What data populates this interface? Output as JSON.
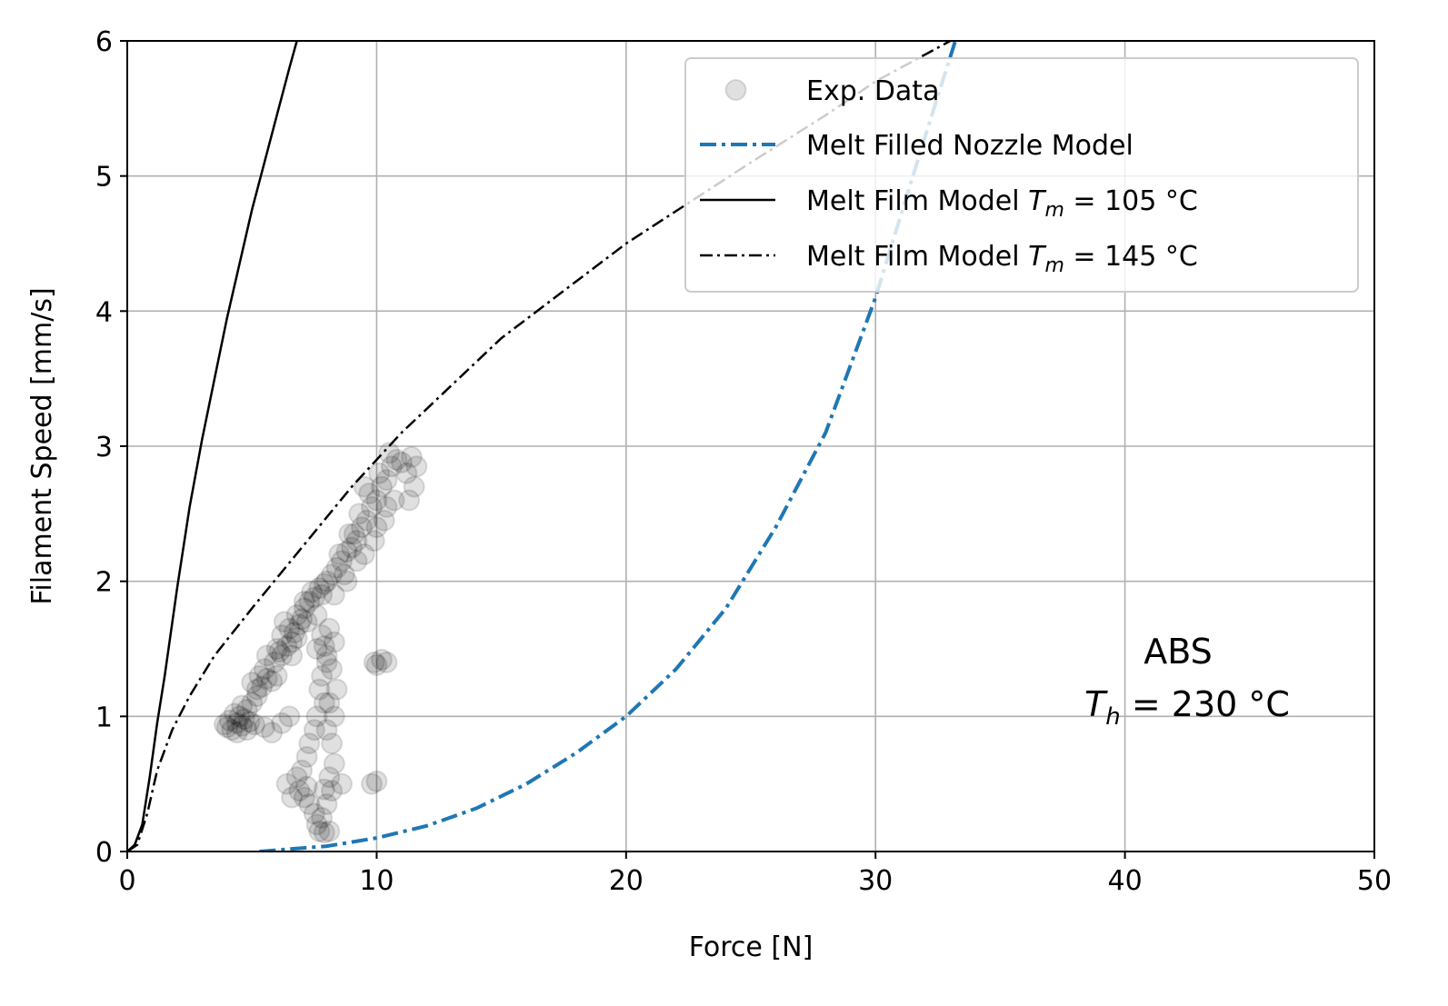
{
  "chart_data": {
    "type": "scatter",
    "title": "",
    "xlabel": "Force [N]",
    "ylabel": "Filament Speed [mm/s]",
    "xlim": [
      0,
      50
    ],
    "ylim": [
      0,
      6
    ],
    "xticks": [
      "0",
      "10",
      "20",
      "30",
      "40",
      "50"
    ],
    "yticks": [
      "0",
      "1",
      "2",
      "3",
      "4",
      "5",
      "6"
    ],
    "grid": true,
    "legend_position": "top-right",
    "annotation": {
      "line1": "ABS",
      "line2_var": "T",
      "line2_sub": "h",
      "line2_rest": " = 230 °C"
    },
    "series": [
      {
        "name": "Exp. Data",
        "kind": "scatter",
        "color": "#000000",
        "alpha": 0.12,
        "points": [
          [
            4.0,
            0.92
          ],
          [
            4.2,
            0.9
          ],
          [
            4.4,
            0.95
          ],
          [
            4.6,
            0.93
          ],
          [
            4.8,
            0.9
          ],
          [
            4.5,
            1.0
          ],
          [
            4.3,
            1.02
          ],
          [
            4.7,
            0.98
          ],
          [
            4.9,
            0.96
          ],
          [
            5.1,
            0.94
          ],
          [
            4.8,
            1.05
          ],
          [
            4.6,
            1.08
          ],
          [
            5.0,
            1.1
          ],
          [
            5.2,
            1.2
          ],
          [
            5.0,
            1.25
          ],
          [
            5.4,
            1.22
          ],
          [
            5.6,
            1.28
          ],
          [
            5.3,
            1.3
          ],
          [
            5.8,
            1.26
          ],
          [
            6.0,
            1.3
          ],
          [
            6.2,
            1.45
          ],
          [
            6.0,
            1.5
          ],
          [
            6.4,
            1.52
          ],
          [
            6.6,
            1.55
          ],
          [
            6.2,
            1.6
          ],
          [
            6.8,
            1.58
          ],
          [
            6.5,
            1.65
          ],
          [
            6.3,
            1.7
          ],
          [
            6.9,
            1.68
          ],
          [
            7.0,
            1.72
          ],
          [
            7.1,
            1.8
          ],
          [
            7.3,
            1.85
          ],
          [
            7.5,
            1.88
          ],
          [
            7.4,
            1.92
          ],
          [
            7.7,
            1.95
          ],
          [
            7.9,
            1.98
          ],
          [
            8.0,
            2.0
          ],
          [
            7.8,
            1.9
          ],
          [
            8.2,
            2.05
          ],
          [
            8.4,
            2.1
          ],
          [
            8.6,
            2.15
          ],
          [
            8.5,
            2.2
          ],
          [
            8.8,
            2.22
          ],
          [
            9.0,
            2.25
          ],
          [
            9.2,
            2.3
          ],
          [
            9.1,
            2.35
          ],
          [
            9.4,
            2.4
          ],
          [
            9.6,
            2.45
          ],
          [
            9.3,
            2.5
          ],
          [
            9.8,
            2.55
          ],
          [
            10.0,
            2.6
          ],
          [
            9.7,
            2.65
          ],
          [
            10.2,
            2.7
          ],
          [
            10.4,
            2.75
          ],
          [
            10.1,
            2.8
          ],
          [
            10.6,
            2.85
          ],
          [
            10.8,
            2.9
          ],
          [
            10.5,
            2.95
          ],
          [
            11.0,
            2.88
          ],
          [
            9.5,
            2.7
          ],
          [
            8.9,
            2.35
          ],
          [
            9.9,
            2.3
          ],
          [
            10.3,
            2.45
          ],
          [
            10.7,
            2.6
          ],
          [
            11.2,
            2.8
          ],
          [
            11.4,
            2.92
          ],
          [
            9.2,
            2.15
          ],
          [
            8.7,
            2.05
          ],
          [
            10.0,
            2.4
          ],
          [
            10.4,
            2.55
          ],
          [
            7.6,
            1.75
          ],
          [
            7.2,
            1.7
          ],
          [
            6.7,
            1.62
          ],
          [
            5.9,
            1.4
          ],
          [
            5.5,
            1.35
          ],
          [
            4.4,
            0.88
          ],
          [
            3.9,
            0.94
          ],
          [
            4.1,
            0.97
          ],
          [
            6.1,
            1.48
          ],
          [
            6.6,
            1.45
          ],
          [
            7.8,
            1.6
          ],
          [
            7.9,
            1.52
          ],
          [
            7.6,
            1.5
          ],
          [
            8.0,
            1.4
          ],
          [
            7.8,
            1.3
          ],
          [
            7.7,
            1.2
          ],
          [
            7.9,
            1.1
          ],
          [
            7.6,
            1.0
          ],
          [
            7.5,
            0.9
          ],
          [
            7.3,
            0.8
          ],
          [
            7.2,
            0.7
          ],
          [
            7.0,
            0.6
          ],
          [
            6.8,
            0.55
          ],
          [
            6.9,
            0.45
          ],
          [
            7.1,
            0.4
          ],
          [
            7.3,
            0.35
          ],
          [
            7.5,
            0.28
          ],
          [
            7.6,
            0.2
          ],
          [
            7.7,
            0.15
          ],
          [
            7.9,
            0.14
          ],
          [
            8.1,
            0.15
          ],
          [
            7.8,
            0.25
          ],
          [
            8.0,
            0.35
          ],
          [
            8.2,
            0.45
          ],
          [
            8.1,
            0.55
          ],
          [
            8.3,
            0.65
          ],
          [
            8.2,
            0.8
          ],
          [
            8.0,
            0.9
          ],
          [
            8.3,
            1.0
          ],
          [
            8.1,
            1.1
          ],
          [
            8.4,
            1.2
          ],
          [
            8.2,
            1.35
          ],
          [
            8.0,
            1.45
          ],
          [
            8.3,
            1.55
          ],
          [
            8.1,
            1.65
          ],
          [
            6.4,
            0.5
          ],
          [
            6.6,
            0.4
          ],
          [
            7.2,
            0.48
          ],
          [
            7.9,
            0.46
          ],
          [
            8.6,
            0.5
          ],
          [
            6.5,
            1.0
          ],
          [
            6.2,
            0.95
          ],
          [
            5.5,
            0.92
          ],
          [
            5.8,
            0.88
          ],
          [
            9.8,
            0.5
          ],
          [
            10.0,
            0.52
          ],
          [
            9.9,
            1.4
          ],
          [
            10.2,
            1.42
          ],
          [
            10.4,
            1.4
          ],
          [
            10.0,
            1.38
          ],
          [
            11.5,
            2.7
          ],
          [
            11.6,
            2.85
          ],
          [
            11.3,
            2.6
          ],
          [
            9.5,
            2.2
          ],
          [
            8.8,
            2.0
          ],
          [
            8.3,
            1.9
          ],
          [
            7.1,
            1.85
          ],
          [
            6.8,
            1.75
          ],
          [
            5.6,
            1.45
          ],
          [
            5.2,
            1.15
          ]
        ]
      },
      {
        "name": "Melt Filled Nozzle Model",
        "kind": "line",
        "color": "#1f77b4",
        "dash": "dashdot",
        "x": [
          5.3,
          8,
          10,
          12,
          14,
          16,
          18,
          20,
          22,
          24,
          26,
          28,
          30,
          31,
          32,
          33.2
        ],
        "y": [
          0.0,
          0.04,
          0.1,
          0.19,
          0.32,
          0.5,
          0.73,
          1.0,
          1.35,
          1.8,
          2.4,
          3.1,
          4.1,
          4.7,
          5.3,
          6.0
        ]
      },
      {
        "name": "Melt Film Model",
        "name_var": "T",
        "name_sub": "m",
        "name_rest": " = 105 °C",
        "kind": "line",
        "color": "#000000",
        "dash": "solid",
        "x": [
          0.0,
          0.3,
          0.6,
          0.9,
          1.2,
          1.5,
          2.0,
          2.5,
          3.0,
          3.5,
          4.0,
          4.5,
          5.0,
          5.5,
          6.0,
          6.5,
          6.8
        ],
        "y": [
          0.0,
          0.05,
          0.2,
          0.55,
          0.95,
          1.3,
          1.95,
          2.55,
          3.05,
          3.5,
          3.95,
          4.35,
          4.75,
          5.1,
          5.45,
          5.8,
          6.0
        ]
      },
      {
        "name": "Melt Film Model",
        "name_var": "T",
        "name_sub": "m",
        "name_rest": " = 145 °C",
        "kind": "line",
        "color": "#000000",
        "dash": "dashdot",
        "x": [
          0.0,
          0.4,
          0.8,
          1.2,
          1.8,
          2.5,
          3.5,
          5.0,
          7.0,
          9.0,
          11.0,
          13.0,
          15.0,
          17.5,
          20.0,
          22.5,
          25.0,
          28.0,
          30.0,
          33.0
        ],
        "y": [
          0.0,
          0.05,
          0.28,
          0.6,
          0.9,
          1.15,
          1.45,
          1.8,
          2.25,
          2.7,
          3.1,
          3.45,
          3.8,
          4.15,
          4.5,
          4.8,
          5.1,
          5.45,
          5.7,
          6.0
        ]
      }
    ]
  }
}
